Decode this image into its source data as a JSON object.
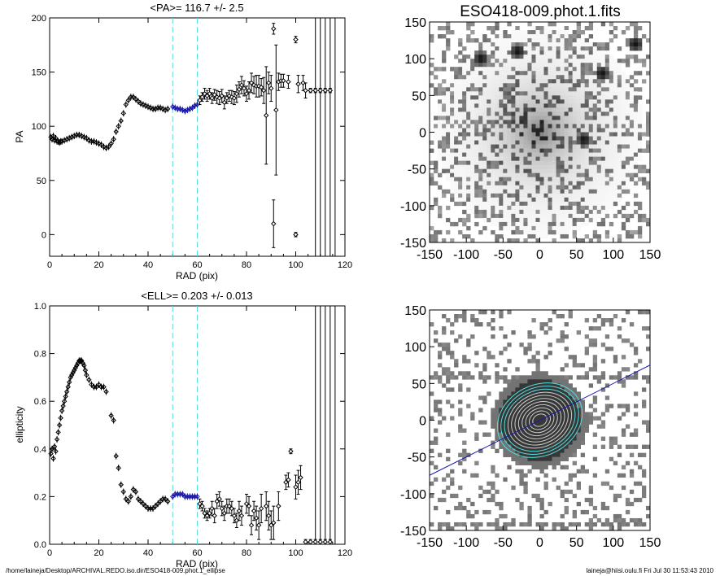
{
  "footer": {
    "left": "/home/laineja/Desktop/ARCHIVAL.REDO.iso.dir/ESO418-009.phot.1_ellipse",
    "right": "laineja@hiisi.oulu.fi  Fri Jul 30 11:53:43 2010"
  },
  "chart_data": [
    {
      "id": "pa",
      "type": "scatter",
      "title": "<PA>= 116.7 +/-   2.5",
      "xlabel": "RAD (pix)",
      "ylabel": "PA",
      "xlim": [
        0,
        120
      ],
      "ylim": [
        -20,
        200
      ],
      "xticks": [
        0,
        20,
        40,
        60,
        80,
        100,
        120
      ],
      "yticks": [
        0,
        50,
        100,
        150,
        200
      ],
      "vlines_dashed": [
        50,
        60
      ],
      "vlines_solid": [
        108,
        110,
        112,
        114,
        116
      ],
      "points": [
        [
          0.5,
          90
        ],
        [
          1,
          88
        ],
        [
          1.5,
          91
        ],
        [
          2,
          87
        ],
        [
          2.5,
          89
        ],
        [
          3,
          86
        ],
        [
          3.5,
          86
        ],
        [
          4,
          85
        ],
        [
          4.5,
          86
        ],
        [
          5,
          86
        ],
        [
          6,
          87
        ],
        [
          7,
          88
        ],
        [
          8,
          89
        ],
        [
          9,
          90
        ],
        [
          10,
          91
        ],
        [
          11,
          92
        ],
        [
          12,
          92
        ],
        [
          13,
          91
        ],
        [
          14,
          90
        ],
        [
          15,
          89
        ],
        [
          16,
          87
        ],
        [
          17,
          86
        ],
        [
          18,
          86
        ],
        [
          19,
          85
        ],
        [
          20,
          84
        ],
        [
          21,
          83
        ],
        [
          22,
          81
        ],
        [
          23,
          80
        ],
        [
          24,
          81
        ],
        [
          25,
          84
        ],
        [
          26,
          88
        ],
        [
          27,
          95
        ],
        [
          28,
          100
        ],
        [
          29,
          105
        ],
        [
          30,
          112
        ],
        [
          31,
          120
        ],
        [
          32,
          124
        ],
        [
          33,
          127
        ],
        [
          34,
          127
        ],
        [
          35,
          125
        ],
        [
          36,
          123
        ],
        [
          37,
          121
        ],
        [
          38,
          120
        ],
        [
          39,
          119
        ],
        [
          40,
          118
        ],
        [
          41,
          117
        ],
        [
          42,
          116
        ],
        [
          43,
          116
        ],
        [
          44,
          117
        ],
        [
          45,
          117
        ],
        [
          46,
          116
        ],
        [
          47,
          115
        ],
        [
          48,
          116
        ]
      ],
      "points_blue": [
        [
          50,
          118
        ],
        [
          51,
          117
        ],
        [
          52,
          116
        ],
        [
          53,
          116
        ],
        [
          54,
          115
        ],
        [
          55,
          114
        ],
        [
          56,
          115
        ],
        [
          57,
          116
        ],
        [
          58,
          117
        ],
        [
          59,
          119
        ],
        [
          60,
          120
        ]
      ],
      "errorbars": [
        [
          61,
          124,
          4
        ],
        [
          62,
          127,
          4
        ],
        [
          63,
          130,
          5
        ],
        [
          64,
          128,
          5
        ],
        [
          65,
          130,
          5
        ],
        [
          66,
          126,
          5
        ],
        [
          67,
          129,
          5
        ],
        [
          68,
          127,
          6
        ],
        [
          69,
          126,
          6
        ],
        [
          70,
          128,
          6
        ],
        [
          71,
          122,
          6
        ],
        [
          72,
          126,
          5
        ],
        [
          73,
          128,
          5
        ],
        [
          74,
          127,
          6
        ],
        [
          75,
          126,
          6
        ],
        [
          76,
          130,
          8
        ],
        [
          77,
          134,
          7
        ],
        [
          78,
          138,
          8
        ],
        [
          79,
          135,
          7
        ],
        [
          80,
          130,
          7
        ],
        [
          81,
          133,
          8
        ],
        [
          82,
          140,
          9
        ],
        [
          83,
          138,
          8
        ],
        [
          84,
          137,
          10
        ],
        [
          85,
          137,
          10
        ],
        [
          86,
          136,
          8
        ],
        [
          87,
          133,
          12
        ],
        [
          88,
          110,
          45
        ],
        [
          89,
          140,
          10
        ],
        [
          90,
          135,
          12
        ],
        [
          91,
          190,
          5
        ],
        [
          91,
          10,
          22
        ],
        [
          92,
          115,
          60
        ],
        [
          93,
          141,
          8
        ],
        [
          94,
          142,
          6
        ],
        [
          95,
          142,
          6
        ],
        [
          97,
          141,
          6
        ],
        [
          100,
          180,
          3
        ],
        [
          100,
          0,
          2
        ],
        [
          101,
          139,
          8
        ],
        [
          103,
          140,
          7
        ],
        [
          104,
          133,
          7
        ],
        [
          106,
          133,
          2
        ],
        [
          108,
          133,
          2
        ],
        [
          110,
          133,
          2
        ],
        [
          112,
          133,
          2
        ],
        [
          114,
          133,
          2
        ]
      ]
    },
    {
      "id": "ell",
      "type": "scatter",
      "title": "<ELL>= 0.203 +/-  0.013",
      "xlabel": "RAD (pix)",
      "ylabel": "ellipticity",
      "xlim": [
        0,
        120
      ],
      "ylim": [
        0,
        1
      ],
      "xticks": [
        0,
        20,
        40,
        60,
        80,
        100,
        120
      ],
      "yticks": [
        0.0,
        0.2,
        0.4,
        0.6,
        0.8,
        1.0
      ],
      "ytick_labels": [
        "0.0",
        "0.2",
        "0.4",
        "0.6",
        "0.8",
        "1.0"
      ],
      "vlines_dashed": [
        50,
        60
      ],
      "vlines_solid": [
        108,
        110,
        112,
        114,
        116
      ],
      "points": [
        [
          0.5,
          0.38
        ],
        [
          1,
          0.4
        ],
        [
          1.5,
          0.36
        ],
        [
          2,
          0.41
        ],
        [
          2.5,
          0.39
        ],
        [
          3,
          0.44
        ],
        [
          3.5,
          0.47
        ],
        [
          4,
          0.5
        ],
        [
          4.5,
          0.53
        ],
        [
          5,
          0.56
        ],
        [
          5.5,
          0.58
        ],
        [
          6,
          0.6
        ],
        [
          6.5,
          0.62
        ],
        [
          7,
          0.64
        ],
        [
          7.5,
          0.66
        ],
        [
          8,
          0.68
        ],
        [
          8.5,
          0.7
        ],
        [
          9,
          0.71
        ],
        [
          9.5,
          0.72
        ],
        [
          10,
          0.73
        ],
        [
          10.5,
          0.74
        ],
        [
          11,
          0.75
        ],
        [
          11.5,
          0.76
        ],
        [
          12,
          0.77
        ],
        [
          12.5,
          0.77
        ],
        [
          13,
          0.77
        ],
        [
          13.5,
          0.76
        ],
        [
          14,
          0.75
        ],
        [
          14.5,
          0.73
        ],
        [
          15,
          0.71
        ],
        [
          16,
          0.69
        ],
        [
          17,
          0.67
        ],
        [
          18,
          0.66
        ],
        [
          19,
          0.66
        ],
        [
          20,
          0.67
        ],
        [
          21,
          0.66
        ],
        [
          22,
          0.66
        ],
        [
          23,
          0.64
        ],
        [
          25,
          0.54
        ],
        [
          26,
          0.52
        ],
        [
          27,
          0.37
        ],
        [
          28,
          0.32
        ],
        [
          29,
          0.25
        ],
        [
          30,
          0.22
        ],
        [
          31,
          0.19
        ],
        [
          32,
          0.18
        ],
        [
          33,
          0.2
        ],
        [
          34,
          0.23
        ],
        [
          35,
          0.22
        ],
        [
          36,
          0.19
        ],
        [
          37,
          0.18
        ],
        [
          38,
          0.17
        ],
        [
          39,
          0.16
        ],
        [
          40,
          0.15
        ],
        [
          41,
          0.15
        ],
        [
          42,
          0.15
        ],
        [
          43,
          0.16
        ],
        [
          44,
          0.17
        ],
        [
          45,
          0.18
        ],
        [
          46,
          0.19
        ],
        [
          47,
          0.19
        ],
        [
          48,
          0.18
        ]
      ],
      "points_blue": [
        [
          50,
          0.2
        ],
        [
          51,
          0.21
        ],
        [
          52,
          0.21
        ],
        [
          53,
          0.21
        ],
        [
          54,
          0.21
        ],
        [
          55,
          0.2
        ],
        [
          56,
          0.2
        ],
        [
          57,
          0.2
        ],
        [
          58,
          0.2
        ],
        [
          59,
          0.2
        ],
        [
          60,
          0.2
        ]
      ],
      "errorbars": [
        [
          61,
          0.17,
          0.02
        ],
        [
          62,
          0.16,
          0.02
        ],
        [
          63,
          0.13,
          0.02
        ],
        [
          64,
          0.12,
          0.02
        ],
        [
          65,
          0.13,
          0.02
        ],
        [
          66,
          0.15,
          0.03
        ],
        [
          67,
          0.12,
          0.03
        ],
        [
          68,
          0.18,
          0.03
        ],
        [
          69,
          0.19,
          0.03
        ],
        [
          70,
          0.15,
          0.03
        ],
        [
          71,
          0.13,
          0.03
        ],
        [
          72,
          0.16,
          0.03
        ],
        [
          73,
          0.16,
          0.03
        ],
        [
          74,
          0.15,
          0.03
        ],
        [
          75,
          0.12,
          0.03
        ],
        [
          76,
          0.1,
          0.03
        ],
        [
          77,
          0.14,
          0.04
        ],
        [
          78,
          0.12,
          0.04
        ],
        [
          80,
          0.17,
          0.04
        ],
        [
          81,
          0.16,
          0.04
        ],
        [
          82,
          0.08,
          0.04
        ],
        [
          83,
          0.14,
          0.04
        ],
        [
          84,
          0.11,
          0.05
        ],
        [
          85,
          0.08,
          0.06
        ],
        [
          86,
          0.15,
          0.06
        ],
        [
          88,
          0.16,
          0.06
        ],
        [
          89,
          0.12,
          0.06
        ],
        [
          90,
          0.08,
          0.06
        ],
        [
          91,
          0.09,
          0.07
        ],
        [
          93,
          0.16,
          0.06
        ],
        [
          96,
          0.26,
          0.03
        ],
        [
          97,
          0.27,
          0.03
        ],
        [
          98,
          0.39,
          0.01
        ],
        [
          100,
          0.24,
          0.05
        ],
        [
          101,
          0.26,
          0.05
        ],
        [
          102,
          0.28,
          0.05
        ],
        [
          104,
          0.01,
          0.01
        ],
        [
          106,
          0.01,
          0.01
        ],
        [
          108,
          0.01,
          0.01
        ],
        [
          110,
          0.01,
          0.01
        ],
        [
          112,
          0.01,
          0.01
        ],
        [
          114,
          0.01,
          0.01
        ]
      ]
    },
    {
      "id": "img1",
      "type": "heatmap",
      "title": "ESO418-009.phot.1.fits",
      "xlim": [
        -150,
        150
      ],
      "ylim": [
        -150,
        150
      ],
      "xticks": [
        -150,
        -100,
        -50,
        0,
        50,
        100,
        150
      ],
      "yticks": [
        -150,
        -100,
        -50,
        0,
        50,
        100,
        150
      ],
      "colormap": "gray_inverted"
    },
    {
      "id": "img2",
      "type": "heatmap",
      "title": "",
      "xlim": [
        -150,
        150
      ],
      "ylim": [
        -150,
        150
      ],
      "xticks": [
        -150,
        -100,
        -50,
        0,
        50,
        100,
        150
      ],
      "yticks": [
        -150,
        -100,
        -50,
        0,
        50,
        100,
        150
      ],
      "overlay_line": [
        [
          -150,
          -75
        ],
        [
          150,
          75
        ]
      ],
      "colormap": "gray_inverted"
    }
  ],
  "colors": {
    "blue": "#1a1aa8",
    "cyan": "#55dddd",
    "point": "#000000"
  }
}
